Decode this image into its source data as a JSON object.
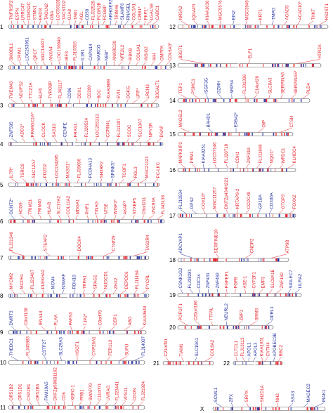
{
  "colors": {
    "red": "#e8202a",
    "blue": "#2330a0",
    "dark": "#333333",
    "chromFill": "#ffffff"
  },
  "chromosomes": [
    {
      "id": "1",
      "genes": [
        {
          "t": "TNFRSF25",
          "c": "red"
        },
        {
          "t": "ESPN",
          "c": "red"
        },
        {
          "t": "LRRC47",
          "c": "red"
        },
        {
          "t": "CDKN2C",
          "c": "red"
        },
        {
          "t": "STMN1",
          "c": "red"
        },
        {
          "t": "PADI4",
          "c": "red"
        },
        {
          "t": "TAGLN2",
          "c": "red"
        },
        {
          "t": "GBA",
          "c": "red"
        },
        {
          "t": "LOC56181",
          "c": "red"
        },
        {
          "t": "TACSTD2*",
          "c": "red"
        },
        {
          "t": "GJA8",
          "c": "red"
        },
        {
          "t": "TAB1",
          "c": "red"
        },
        {
          "t": "AGL",
          "c": "red"
        },
        {
          "t": "CD58",
          "c": "blue"
        },
        {
          "t": "FLJ32529",
          "c": "red"
        },
        {
          "t": "FCGR2B",
          "c": "red"
        },
        {
          "t": "FCGBP",
          "c": "red"
        },
        {
          "t": "ARHGEF2",
          "c": "blue"
        },
        {
          "t": "TRIM46",
          "c": "red"
        },
        {
          "t": "SLAMF6",
          "c": "blue"
        },
        {
          "t": "RNASEL",
          "c": "blue"
        },
        {
          "t": "COL5A1",
          "c": "red"
        },
        {
          "t": "CRB1*",
          "c": "red"
        },
        {
          "t": "PKP1*",
          "c": "red"
        },
        {
          "t": "LGALS8",
          "c": "red"
        },
        {
          "t": "CABC1",
          "c": "red"
        }
      ]
    },
    {
      "id": "2",
      "genes": [
        {
          "t": "SMOBL1",
          "c": "red"
        },
        {
          "t": "CRIM1",
          "c": "red"
        },
        {
          "t": "LOC253951",
          "c": "blue"
        },
        {
          "t": "QPCT",
          "c": "red"
        },
        {
          "t": "MGC14407",
          "c": "red"
        },
        {
          "t": "ANXA4",
          "c": "red"
        },
        {
          "t": "LOC130940",
          "c": "red"
        },
        {
          "t": "IRF3",
          "c": "red"
        },
        {
          "t": "FLJ10316",
          "c": "red"
        },
        {
          "t": "IL1R1",
          "c": "blue"
        },
        {
          "t": "CAPN14",
          "c": "blue"
        },
        {
          "t": "MARCO",
          "c": "blue"
        },
        {
          "t": "NEB*",
          "c": "blue"
        },
        {
          "t": "ANKRD30",
          "c": "red"
        },
        {
          "t": "NFE2L2",
          "c": "red"
        },
        {
          "t": "IKBKB",
          "c": "red"
        },
        {
          "t": "COL3A1",
          "c": "red"
        },
        {
          "t": "INSIG2",
          "c": "red"
        },
        {
          "t": "IHH",
          "c": "red"
        },
        {
          "t": "GMPPA",
          "c": "red"
        },
        {
          "t": "COL6A3*",
          "c": "red"
        }
      ]
    },
    {
      "id": "3",
      "genes": [
        {
          "t": "TMEM43",
          "c": "red"
        },
        {
          "t": "NDUFS2",
          "c": "red"
        },
        {
          "t": "TTC21A",
          "c": "red"
        },
        {
          "t": "ELP6",
          "c": "red"
        },
        {
          "t": "TYROBP",
          "c": "red"
        },
        {
          "t": "FLJ41117",
          "c": "red"
        },
        {
          "t": "CD96",
          "c": "blue"
        },
        {
          "t": "DDX1",
          "c": "red"
        },
        {
          "t": "CD200",
          "c": "red"
        },
        {
          "t": "BOC",
          "c": "red"
        },
        {
          "t": "KIAA0889",
          "c": "red"
        },
        {
          "t": "EVI1",
          "c": "red"
        },
        {
          "t": "DGKG",
          "c": "red"
        },
        {
          "t": "UPP*",
          "c": "red"
        },
        {
          "t": "LRCH3",
          "c": "red"
        },
        {
          "t": "B3GALT1",
          "c": "red"
        }
      ]
    },
    {
      "id": "4",
      "genes": [
        {
          "t": "ZNF595",
          "c": "blue"
        },
        {
          "t": "ADD1*",
          "c": "red"
        },
        {
          "t": "PPARGC1A*",
          "c": "red"
        },
        {
          "t": "CLOCK",
          "c": "red"
        },
        {
          "t": "SAS10",
          "c": "red"
        },
        {
          "t": "CENPE",
          "c": "blue"
        },
        {
          "t": "FRAS1",
          "c": "red"
        },
        {
          "t": "FLJ20534",
          "c": "red"
        },
        {
          "t": "LOC255313",
          "c": "red"
        },
        {
          "t": "CCRN4L",
          "c": "red"
        },
        {
          "t": "FLJ11307",
          "c": "red"
        },
        {
          "t": "SCOC",
          "c": "red"
        },
        {
          "t": "SLC10A7",
          "c": "red"
        },
        {
          "t": "NPY1R",
          "c": "red"
        },
        {
          "t": "DSAP",
          "c": "red"
        }
      ]
    },
    {
      "id": "5",
      "genes": [
        {
          "t": "IL7R*",
          "c": "red"
        },
        {
          "t": "TSRC9",
          "c": "red"
        },
        {
          "t": "SLC12A7",
          "c": "red"
        },
        {
          "t": "PDZD2",
          "c": "red"
        },
        {
          "t": "LOC134285",
          "c": "red"
        },
        {
          "t": "MASS1*",
          "c": "red"
        },
        {
          "t": "FLJ39690",
          "c": "red"
        },
        {
          "t": "PCDHA13",
          "c": "blue"
        },
        {
          "t": "SH3RF2",
          "c": "red"
        },
        {
          "t": "SPINK5*",
          "c": "blue"
        },
        {
          "t": "TCOF1",
          "c": "red"
        },
        {
          "t": "RGL3",
          "c": "red"
        },
        {
          "t": "MGC21121",
          "c": "red"
        },
        {
          "t": "PC-LKC",
          "c": "red"
        }
      ]
    },
    {
      "id": "6",
      "genes": [
        {
          "t": "GCNT2*",
          "c": "blue"
        },
        {
          "t": "HCG9",
          "c": "red"
        },
        {
          "t": "TRIM31",
          "c": "red"
        },
        {
          "t": "TRIM40",
          "c": "red"
        },
        {
          "t": "HLA-B",
          "c": "red"
        },
        {
          "t": "SLC17A2",
          "c": "red"
        },
        {
          "t": "COL11A2",
          "c": "red"
        },
        {
          "t": "MDGA1",
          "c": "red"
        },
        {
          "t": "PHF1",
          "c": "red"
        },
        {
          "t": "TINAG",
          "c": "red"
        },
        {
          "t": "NT5E",
          "c": "red"
        },
        {
          "t": "WISP3*",
          "c": "red"
        },
        {
          "t": "AKAP7",
          "c": "red"
        },
        {
          "t": "STXBP5",
          "c": "red"
        },
        {
          "t": "C6orf211",
          "c": "red"
        },
        {
          "t": "UNC93A",
          "c": "red"
        },
        {
          "t": "FLJ43138",
          "c": "red"
        }
      ]
    },
    {
      "id": "7",
      "genes": [
        {
          "t": "FLJ31340",
          "c": "red"
        },
        {
          "t": "STEAP2",
          "c": "red"
        },
        {
          "t": "DOCK4",
          "c": "red"
        },
        {
          "t": "C7orf29",
          "c": "red"
        },
        {
          "t": "TAS2R4",
          "c": "red"
        }
      ]
    },
    {
      "id": "8",
      "genes": [
        {
          "t": "MYOM2",
          "c": "red"
        },
        {
          "t": "MCPH1",
          "c": "red"
        },
        {
          "t": "FLJ23467",
          "c": "red"
        },
        {
          "t": "PLEKHA2",
          "c": "red"
        },
        {
          "t": "MCM4",
          "c": "blue"
        },
        {
          "t": "NSMAF",
          "c": "blue"
        },
        {
          "t": "RDH10",
          "c": "blue"
        },
        {
          "t": "TRPA1",
          "c": "red"
        },
        {
          "t": "SPAG1",
          "c": "red"
        },
        {
          "t": "NUDCD1",
          "c": "red"
        },
        {
          "t": "ZHX2",
          "c": "red"
        },
        {
          "t": "DEPDC6",
          "c": "red"
        },
        {
          "t": "FLJ11164",
          "c": "red"
        },
        {
          "t": "PYCRL",
          "c": "red"
        }
      ]
    },
    {
      "id": "9",
      "genes": [
        {
          "t": "DMRT3",
          "c": "blue"
        },
        {
          "t": "C9orf138",
          "c": "red"
        },
        {
          "t": "IFNA14",
          "c": "red"
        },
        {
          "t": "PLAA",
          "c": "red"
        },
        {
          "t": "PAFS3",
          "c": "red"
        },
        {
          "t": "TJP2*",
          "c": "red"
        },
        {
          "t": "C9orf79",
          "c": "red"
        },
        {
          "t": "CEP1",
          "c": "red"
        },
        {
          "t": "ABO",
          "c": "red"
        },
        {
          "t": "KIAA0649",
          "c": "red"
        }
      ]
    },
    {
      "id": "10",
      "genes": [
        {
          "t": "THEDC1",
          "c": "blue"
        },
        {
          "t": "FLJ45983",
          "c": "red"
        },
        {
          "t": "CSTF2T",
          "c": "blue"
        },
        {
          "t": "SLC29A3",
          "c": "blue"
        },
        {
          "t": "HSGT1",
          "c": "red"
        },
        {
          "t": "CYP26A1",
          "c": "red"
        },
        {
          "t": "FER1L3",
          "c": "red"
        },
        {
          "t": "SUFU",
          "c": "red"
        },
        {
          "t": "FLJ14007",
          "c": "blue"
        }
      ]
    },
    {
      "id": "11",
      "genes": [
        {
          "t": "OR51B2",
          "c": "red"
        },
        {
          "t": "OR51D1",
          "c": "red"
        },
        {
          "t": "CYP2R1",
          "c": "red"
        },
        {
          "t": "OR52B6",
          "c": "red"
        },
        {
          "t": "FAM10A5",
          "c": "blue"
        },
        {
          "t": "DKFZp586B1162",
          "c": "red"
        },
        {
          "t": "CD6",
          "c": "red"
        },
        {
          "t": "XEPC-1",
          "c": "red"
        },
        {
          "t": "PRB1",
          "c": "red"
        },
        {
          "t": "SWAP70",
          "c": "red"
        },
        {
          "t": "C11orf71",
          "c": "red"
        },
        {
          "t": "UVRAG",
          "c": "red"
        },
        {
          "t": "FLJ23441",
          "c": "red"
        },
        {
          "t": "VPS11",
          "c": "red"
        },
        {
          "t": "CDON",
          "c": "red"
        },
        {
          "t": "FLJ21924",
          "c": "red"
        }
      ]
    },
    {
      "id": "12",
      "genes": [
        {
          "t": "NR5A2",
          "c": "red"
        },
        {
          "t": "IQGAP3",
          "c": "red"
        },
        {
          "t": "KIAA1630",
          "c": "red"
        },
        {
          "t": "MGC5576",
          "c": "red"
        },
        {
          "t": "BIN2",
          "c": "blue"
        },
        {
          "t": "MGC39497",
          "c": "red"
        },
        {
          "t": "KRT1",
          "c": "red"
        },
        {
          "t": "TMPO",
          "c": "blue"
        },
        {
          "t": "ACADS",
          "c": "red"
        },
        {
          "t": "ACAD10*",
          "c": "red"
        },
        {
          "t": "THKT",
          "c": "red"
        },
        {
          "t": "HS2ST1",
          "c": "red"
        }
      ]
    },
    {
      "id": "13",
      "genes": [
        {
          "t": "B3GTL",
          "c": "red"
        },
        {
          "t": "ELF1",
          "c": "red"
        },
        {
          "t": "HTR2A",
          "c": "red"
        }
      ]
    },
    {
      "id": "14",
      "genes": [
        {
          "t": "TEP1",
          "c": "red"
        },
        {
          "t": "PSMC1",
          "c": "red"
        },
        {
          "t": "ISGF3G",
          "c": "blue"
        },
        {
          "t": "GZMH",
          "c": "blue"
        },
        {
          "t": "SRP54",
          "c": "blue"
        },
        {
          "t": "FLJ31306",
          "c": "red"
        },
        {
          "t": "C14orf29",
          "c": "red"
        },
        {
          "t": "SLC8A3",
          "c": "red"
        },
        {
          "t": "SERPINA6",
          "c": "red"
        },
        {
          "t": "SERPINA5*",
          "c": "red"
        },
        {
          "t": "PLD4",
          "c": "red"
        }
      ]
    },
    {
      "id": "15",
      "genes": [
        {
          "t": "MAGEL2",
          "c": "red"
        },
        {
          "t": "BAHD1",
          "c": "blue"
        },
        {
          "t": "EPB42*",
          "c": "blue"
        },
        {
          "t": "OIP",
          "c": "red"
        },
        {
          "t": "CTSH",
          "c": "red"
        }
      ]
    },
    {
      "id": "16",
      "genes": [
        {
          "t": "MAPK8IP3",
          "c": "red"
        },
        {
          "t": "PRM1",
          "c": "red"
        },
        {
          "t": "KIAA0251",
          "c": "blue"
        },
        {
          "t": "LOC57146",
          "c": "red"
        },
        {
          "t": "FLJ20718",
          "c": "red"
        },
        {
          "t": "CDH1",
          "c": "red"
        },
        {
          "t": "ZNF319",
          "c": "red"
        },
        {
          "t": "FLJ11848",
          "c": "red"
        },
        {
          "t": "NQO1*",
          "c": "red"
        },
        {
          "t": "WFDC1",
          "c": "red"
        },
        {
          "t": "KLHDC4",
          "c": "red"
        }
      ]
    },
    {
      "id": "17",
      "genes": [
        {
          "t": "FLJ10534",
          "c": "blue"
        },
        {
          "t": "GPS2",
          "c": "blue"
        },
        {
          "t": "COX10*",
          "c": "red"
        },
        {
          "t": "MGC11257",
          "c": "red"
        },
        {
          "t": "DKFZp434H221",
          "c": "red"
        },
        {
          "t": "KRTAP9-2",
          "c": "red"
        },
        {
          "t": "CCDC49",
          "c": "red"
        },
        {
          "t": "GP1BA",
          "c": "blue"
        },
        {
          "t": "CD300A",
          "c": "blue"
        },
        {
          "t": "OTOP3",
          "c": "red"
        },
        {
          "t": "FOXK2",
          "c": "red"
        }
      ]
    },
    {
      "id": "18",
      "genes": [
        {
          "t": "ADCYAP1",
          "c": "blue"
        },
        {
          "t": "SERPINB10",
          "c": "red"
        },
        {
          "t": "CNDP2",
          "c": "red"
        },
        {
          "t": "ATP9B",
          "c": "red"
        }
      ]
    },
    {
      "id": "19",
      "genes": [
        {
          "t": "CSNK1G2",
          "c": "blue"
        },
        {
          "t": "FLJ38281",
          "c": "blue"
        },
        {
          "t": "CDC34",
          "c": "blue"
        },
        {
          "t": "ZNF431",
          "c": "blue"
        },
        {
          "t": "ZNF493",
          "c": "blue"
        },
        {
          "t": "PGPEP1",
          "c": "red"
        },
        {
          "t": "FGFB",
          "c": "red"
        },
        {
          "t": "ASE-1",
          "c": "red"
        },
        {
          "t": "CYP2F1",
          "c": "red"
        },
        {
          "t": "EMP3",
          "c": "red"
        },
        {
          "t": "SLC8A1E",
          "c": "red"
        },
        {
          "t": "ZNF160",
          "c": "red"
        },
        {
          "t": "SIGLEC7",
          "c": "blue"
        },
        {
          "t": "LILRA2",
          "c": "blue"
        }
      ]
    },
    {
      "id": "20",
      "genes": [
        {
          "t": "POFUT1",
          "c": "red"
        },
        {
          "t": "C20orf186",
          "c": "red"
        },
        {
          "t": "TTPAL",
          "c": "red"
        },
        {
          "t": "NEURL2",
          "c": "blue"
        },
        {
          "t": "ZBP1",
          "c": "red"
        },
        {
          "t": "SRMS",
          "c": "red"
        },
        {
          "t": "OPRL1",
          "c": "blue"
        }
      ]
    },
    {
      "id": "21",
      "genes": [
        {
          "t": "C21orf91",
          "c": "red"
        },
        {
          "t": "TIAM1",
          "c": "red"
        },
        {
          "t": "SLC19A1",
          "c": "blue"
        },
        {
          "t": "COL6A2",
          "c": "red"
        }
      ]
    },
    {
      "id": "22",
      "genes": [
        {
          "t": "CLTCL1",
          "c": "red"
        },
        {
          "t": "FLJ13113",
          "c": "red"
        },
        {
          "t": "APOL1",
          "c": "blue"
        },
        {
          "t": "APOL3",
          "c": "blue"
        },
        {
          "t": "KIAA1651",
          "c": "red"
        },
        {
          "t": "CYTH4",
          "c": "red"
        },
        {
          "t": "APOBEC3B",
          "c": "blue"
        },
        {
          "t": "RBC2",
          "c": "red"
        }
      ]
    },
    {
      "id": "X",
      "genes": [
        {
          "t": "SCML1",
          "c": "blue"
        },
        {
          "t": "ZFX",
          "c": "blue"
        },
        {
          "t": "SRPX",
          "c": "red"
        },
        {
          "t": "SH2D1A",
          "c": "red"
        },
        {
          "t": "NH2",
          "c": "red"
        },
        {
          "t": "SSX3",
          "c": "blue"
        },
        {
          "t": "MAGEC2",
          "c": "blue"
        },
        {
          "t": "IRAK1",
          "c": "blue"
        }
      ]
    }
  ]
}
